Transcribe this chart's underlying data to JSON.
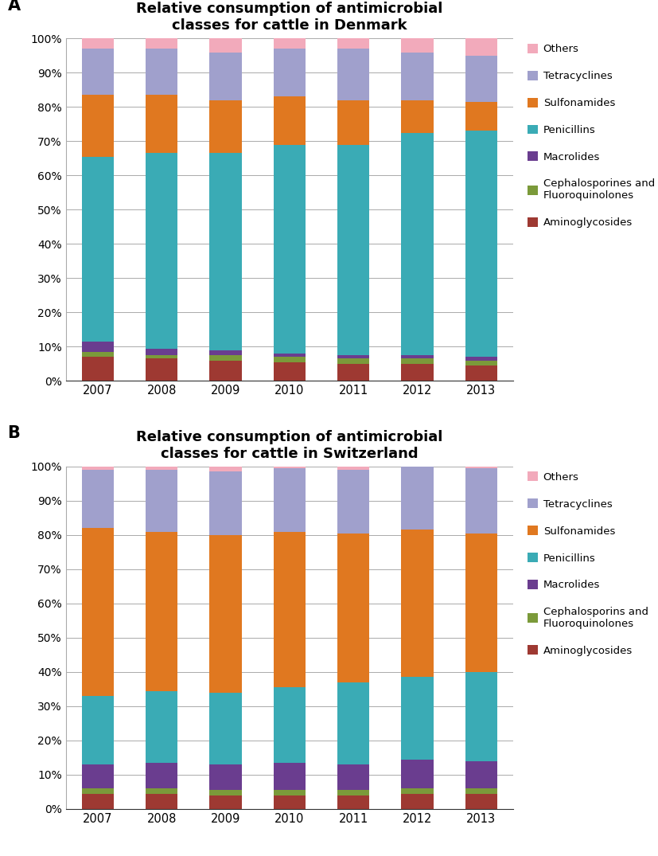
{
  "years": [
    2007,
    2008,
    2009,
    2010,
    2011,
    2012,
    2013
  ],
  "denmark": {
    "title": "Relative consumption of antimicrobial\nclasses for cattle in Denmark",
    "Aminoglycosides": [
      7.0,
      6.5,
      6.0,
      5.5,
      5.0,
      5.0,
      4.5
    ],
    "Cephalosporines": [
      1.5,
      1.0,
      1.5,
      1.5,
      1.5,
      1.5,
      1.5
    ],
    "Macrolides": [
      3.0,
      2.0,
      1.5,
      1.0,
      1.0,
      1.0,
      1.0
    ],
    "Penicillins": [
      54.0,
      57.0,
      57.5,
      61.0,
      61.5,
      65.0,
      66.0
    ],
    "Sulfonamides": [
      18.0,
      17.0,
      15.5,
      14.0,
      13.0,
      9.5,
      8.5
    ],
    "Tetracyclines": [
      13.5,
      13.5,
      14.0,
      14.0,
      15.0,
      14.0,
      13.5
    ],
    "Others": [
      3.0,
      3.0,
      4.0,
      3.0,
      3.0,
      4.0,
      5.0
    ]
  },
  "switzerland": {
    "title": "Relative consumption of antimicrobial\nclasses for cattle in Switzerland",
    "Aminoglycosides": [
      4.5,
      4.5,
      4.0,
      4.0,
      4.0,
      4.5,
      4.5
    ],
    "Cephalosporins": [
      1.5,
      1.5,
      1.5,
      1.5,
      1.5,
      1.5,
      1.5
    ],
    "Macrolides": [
      7.0,
      7.5,
      7.5,
      8.0,
      7.5,
      8.5,
      8.0
    ],
    "Penicillins": [
      20.0,
      21.0,
      21.0,
      22.0,
      24.0,
      24.0,
      26.0
    ],
    "Sulfonamides": [
      49.0,
      46.5,
      46.0,
      45.5,
      43.5,
      43.0,
      40.5
    ],
    "Tetracyclines": [
      17.0,
      18.0,
      18.5,
      18.5,
      18.5,
      18.5,
      19.0
    ],
    "Others": [
      1.0,
      1.0,
      1.5,
      0.5,
      1.0,
      0.0,
      0.5
    ]
  },
  "colors": {
    "Aminoglycosides": "#9E3932",
    "Cephalosporines": "#7B9A3A",
    "Cephalosporins": "#7B9A3A",
    "Macrolides": "#6A3D8F",
    "Penicillins": "#3AABB5",
    "Sulfonamides": "#E07820",
    "Tetracyclines": "#A0A0CC",
    "Others": "#F2AABB"
  },
  "legend_denmark": [
    {
      "label": "Others",
      "color_key": "Others"
    },
    {
      "label": "Tetracyclines",
      "color_key": "Tetracyclines"
    },
    {
      "label": "Sulfonamides",
      "color_key": "Sulfonamides"
    },
    {
      "label": "Penicillins",
      "color_key": "Penicillins"
    },
    {
      "label": "Macrolides",
      "color_key": "Macrolides"
    },
    {
      "label": "Cephalosporines and\nFluoroquinolones",
      "color_key": "Cephalosporines"
    },
    {
      "label": "Aminoglycosides",
      "color_key": "Aminoglycosides"
    }
  ],
  "legend_switzerland": [
    {
      "label": "Others",
      "color_key": "Others"
    },
    {
      "label": "Tetracyclines",
      "color_key": "Tetracyclines"
    },
    {
      "label": "Sulfonamides",
      "color_key": "Sulfonamides"
    },
    {
      "label": "Penicillins",
      "color_key": "Penicillins"
    },
    {
      "label": "Macrolides",
      "color_key": "Macrolides"
    },
    {
      "label": "Cephalosporins and\nFluoroquinolones",
      "color_key": "Cephalosporins"
    },
    {
      "label": "Aminoglycosides",
      "color_key": "Aminoglycosides"
    }
  ],
  "stack_order_denmark": [
    "Aminoglycosides",
    "Cephalosporines",
    "Macrolides",
    "Penicillins",
    "Sulfonamides",
    "Tetracyclines",
    "Others"
  ],
  "stack_order_switzerland": [
    "Aminoglycosides",
    "Cephalosporins",
    "Macrolides",
    "Penicillins",
    "Sulfonamides",
    "Tetracyclines",
    "Others"
  ]
}
